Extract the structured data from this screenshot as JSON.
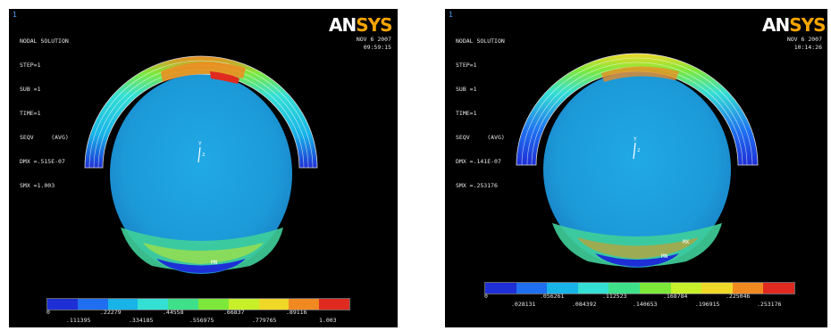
{
  "panels": [
    {
      "window_number": "1",
      "info": [
        "NODAL SOLUTION",
        "STEP=1",
        "SUB =1",
        "TIME=1",
        "SEQV     (AVG)",
        "DMX =.515E-07",
        "SMX =1.003"
      ],
      "logo_an": "AN",
      "logo_sys": "SYS",
      "date": "NOV  6 2007",
      "time": "09:59:15",
      "mn_label": "MN",
      "legend_top_ticks": [
        "0",
        ".22279",
        ".44558",
        ".66837",
        ".89116"
      ],
      "legend_bottom_ticks": [
        ".111395",
        ".334185",
        ".556975",
        ".779765",
        "1.003"
      ]
    },
    {
      "window_number": "1",
      "info": [
        "NODAL SOLUTION",
        "STEP=1",
        "SUB =1",
        "TIME=1",
        "SEQV     (AVG)",
        "DMX =.141E-07",
        "SMX =.253176"
      ],
      "logo_an": "AN",
      "logo_sys": "SYS",
      "date": "NOV  6 2007",
      "time": "10:14:26",
      "mn_label": "MN",
      "mx_label": "MX",
      "legend_top_ticks": [
        "0",
        ".056261",
        ".112523",
        ".168784",
        ".225046"
      ],
      "legend_bottom_ticks": [
        ".028131",
        ".084392",
        ".140653",
        ".196915",
        ".253176"
      ]
    }
  ],
  "legend_colors": [
    "#1e2fd6",
    "#1f6ff0",
    "#18b4e8",
    "#34e0d4",
    "#3fe08a",
    "#7ee83a",
    "#c8f02a",
    "#f0d828",
    "#f08a20",
    "#e02a20"
  ]
}
